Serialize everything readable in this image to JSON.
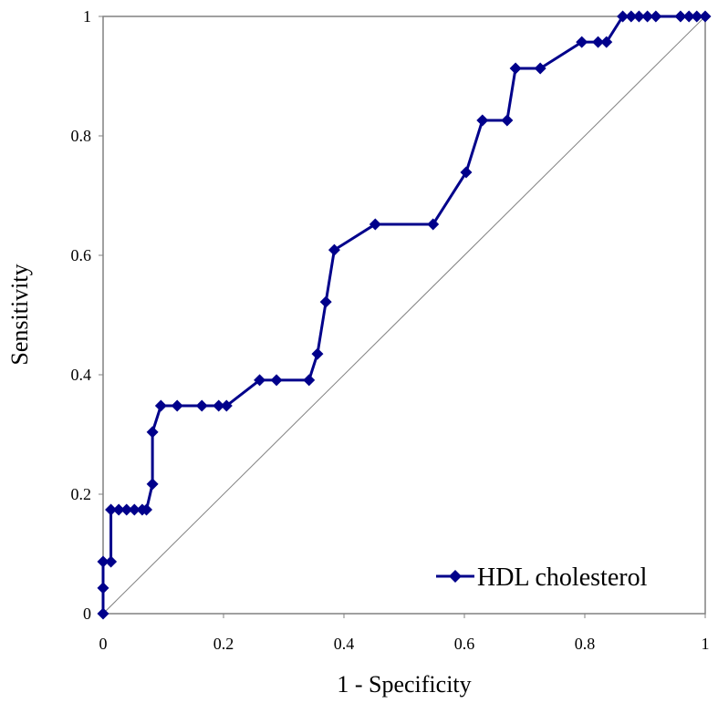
{
  "chart_data": {
    "type": "line",
    "title": "",
    "xlabel": "1 - Specificity",
    "ylabel": "Sensitivity",
    "xlim": [
      0,
      1
    ],
    "ylim": [
      0,
      1
    ],
    "x_ticks": [
      0,
      0.2,
      0.4,
      0.6,
      0.8,
      1
    ],
    "x_tick_labels": [
      "0",
      "0.2",
      "0.4",
      "0.6",
      "0.8",
      "1"
    ],
    "y_ticks": [
      0,
      0.2,
      0.4,
      0.6,
      0.8,
      1
    ],
    "y_tick_labels": [
      "0",
      "0.2",
      "0.4",
      "0.6",
      "0.8",
      "1"
    ],
    "grid": false,
    "legend_position": "bottom-right",
    "series": [
      {
        "name": "HDL cholesterol",
        "color": "#00008B",
        "marker": "diamond",
        "x": [
          0,
          0,
          0,
          0.013,
          0.013,
          0.026,
          0.039,
          0.052,
          0.065,
          0.072,
          0.082,
          0.082,
          0.096,
          0.123,
          0.164,
          0.192,
          0.205,
          0.26,
          0.288,
          0.342,
          0.356,
          0.37,
          0.384,
          0.452,
          0.548,
          0.603,
          0.63,
          0.671,
          0.685,
          0.726,
          0.795,
          0.822,
          0.836,
          0.863,
          0.877,
          0.89,
          0.904,
          0.918,
          0.959,
          0.973,
          0.986,
          1
        ],
        "y": [
          0,
          0.043,
          0.087,
          0.087,
          0.174,
          0.174,
          0.174,
          0.174,
          0.174,
          0.174,
          0.217,
          0.304,
          0.348,
          0.348,
          0.348,
          0.348,
          0.348,
          0.391,
          0.391,
          0.391,
          0.435,
          0.522,
          0.609,
          0.652,
          0.652,
          0.739,
          0.826,
          0.826,
          0.913,
          0.913,
          0.957,
          0.957,
          0.957,
          1,
          1,
          1,
          1,
          1,
          1,
          1,
          1,
          1
        ]
      },
      {
        "name": "Reference line",
        "color": "#808080",
        "marker": "none",
        "x": [
          0,
          1
        ],
        "y": [
          0,
          1
        ],
        "show_in_legend": false
      }
    ]
  },
  "colors": {
    "series": "#00008B",
    "reference": "#808080",
    "frame": "#808080",
    "text": "#000000"
  }
}
